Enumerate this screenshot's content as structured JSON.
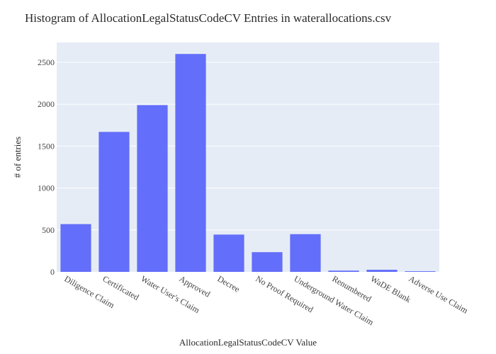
{
  "chart_data": {
    "type": "bar",
    "title": "Histogram of AllocationLegalStatusCodeCV Entries in waterallocations.csv",
    "xlabel": "AllocationLegalStatusCodeCV Value",
    "ylabel": "# of entries",
    "categories": [
      "Diligence Claim",
      "Certificated",
      "Water User's Claim",
      "Approved",
      "Decree",
      "No Proof Required",
      "Underground Water Claim",
      "Renumbered",
      "WaDE Blank",
      "Adverse Use Claim"
    ],
    "values": [
      570,
      1670,
      1990,
      2600,
      445,
      235,
      450,
      15,
      25,
      8
    ],
    "ylim": [
      0,
      2737
    ],
    "yticks": [
      0,
      500,
      1000,
      1500,
      2000,
      2500
    ],
    "grid": true,
    "colors": {
      "bar": "#636efa",
      "plot_bg": "#e5ecf6",
      "grid": "#ffffff"
    }
  }
}
